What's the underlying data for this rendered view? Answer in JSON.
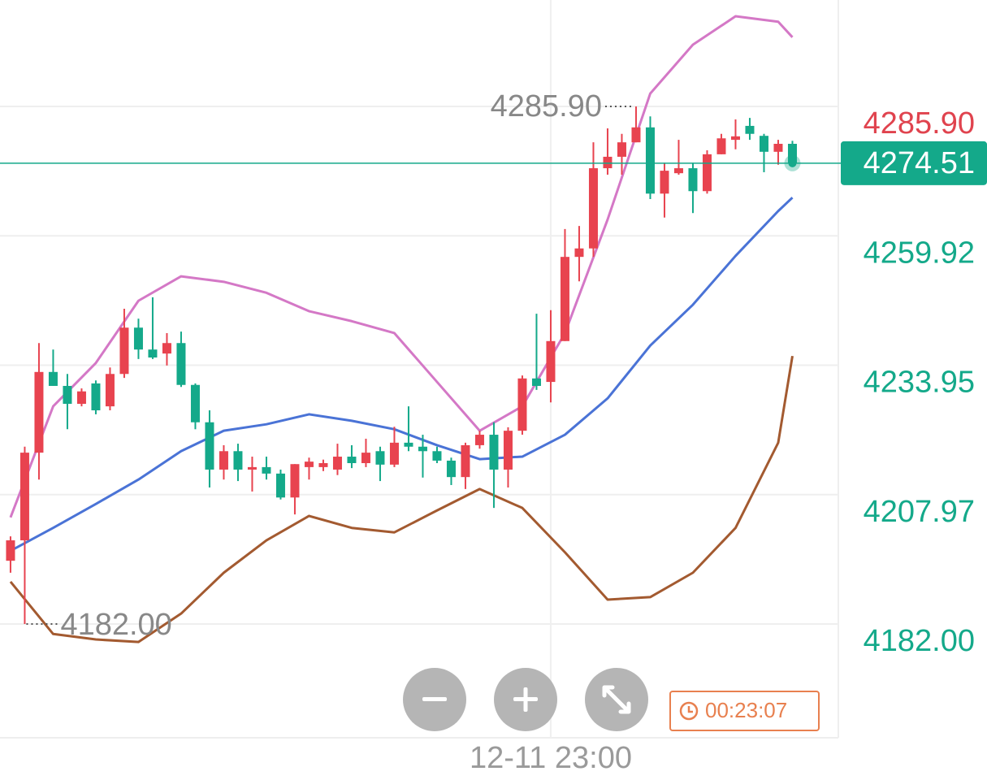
{
  "chart_data": {
    "type": "candlestick",
    "open": [
      4194.7,
      4198.8,
      4216.4,
      4232.6,
      4229.8,
      4226.2,
      4230.3,
      4225.7,
      4232.2,
      4241.5,
      4237.1,
      4236.3,
      4238.4,
      4230.0,
      4222.5,
      4213.0,
      4216.7,
      4213.0,
      4213.5,
      4212.2,
      4207.4,
      4213.5,
      4213.5,
      4213.0,
      4215.6,
      4214.3,
      4216.7,
      4214.0,
      4218.4,
      4217.6,
      4216.7,
      4214.8,
      4211.5,
      4217.9,
      4220.0,
      4213.0,
      4220.8,
      4231.3,
      4230.6,
      4238.8,
      4255.7,
      4257.4,
      4273.5,
      4275.8,
      4278.7,
      4281.7,
      4268.4,
      4272.5,
      4273.5,
      4268.9,
      4276.3,
      4279.2,
      4282.0,
      4280.0,
      4276.8,
      4278.4
    ],
    "high": [
      4199.6,
      4217.6,
      4238.4,
      4237.1,
      4232.2,
      4229.3,
      4230.9,
      4233.5,
      4245.3,
      4243.3,
      4247.6,
      4240.4,
      4240.7,
      4230.3,
      4224.9,
      4217.9,
      4218.2,
      4215.6,
      4215.6,
      4213.0,
      4214.1,
      4215.4,
      4215.0,
      4218.2,
      4217.9,
      4219.2,
      4217.6,
      4221.6,
      4225.7,
      4220.0,
      4217.6,
      4215.4,
      4218.4,
      4220.8,
      4222.5,
      4221.5,
      4231.9,
      4244.3,
      4245.0,
      4261.3,
      4261.9,
      4278.7,
      4281.5,
      4280.4,
      4285.9,
      4283.9,
      4274.6,
      4279.2,
      4274.6,
      4277.1,
      4280.4,
      4283.3,
      4283.6,
      4280.4,
      4279.2,
      4279.0
    ],
    "low": [
      4192.3,
      4182.0,
      4211.0,
      4229.8,
      4221.1,
      4225.7,
      4224.1,
      4224.9,
      4231.4,
      4235.2,
      4235.2,
      4233.9,
      4229.6,
      4221.1,
      4209.4,
      4211.0,
      4210.7,
      4208.6,
      4211.0,
      4207.0,
      4204.0,
      4211.0,
      4212.7,
      4211.9,
      4213.3,
      4213.5,
      4210.7,
      4213.5,
      4216.7,
      4211.4,
      4214.3,
      4209.9,
      4209.1,
      4217.2,
      4205.3,
      4209.4,
      4220.0,
      4229.0,
      4226.5,
      4238.8,
      4250.8,
      4255.7,
      4272.2,
      4272.2,
      4278.7,
      4267.3,
      4263.6,
      4272.2,
      4264.5,
      4268.4,
      4276.3,
      4277.3,
      4279.2,
      4272.7,
      4274.2,
      4273.8
    ],
    "close": [
      4198.8,
      4216.4,
      4232.6,
      4229.8,
      4226.2,
      4228.7,
      4224.9,
      4232.2,
      4241.5,
      4237.1,
      4235.5,
      4238.4,
      4230.0,
      4222.5,
      4213.0,
      4216.7,
      4213.0,
      4213.5,
      4212.2,
      4207.4,
      4214.1,
      4214.6,
      4214.3,
      4215.6,
      4214.3,
      4216.4,
      4214.0,
      4218.4,
      4217.6,
      4216.7,
      4214.8,
      4211.5,
      4217.9,
      4220.0,
      4213.0,
      4220.8,
      4231.3,
      4229.8,
      4238.8,
      4255.7,
      4257.4,
      4273.5,
      4275.8,
      4278.7,
      4281.7,
      4268.4,
      4273.0,
      4273.5,
      4268.9,
      4276.3,
      4279.5,
      4279.9,
      4280.4,
      4276.8,
      4278.4,
      4274.51
    ],
    "up_color": "#e8434f",
    "down_color": "#14a98a",
    "overlays": [
      {
        "color": "#d478c6",
        "x": [
          0,
          3,
          6,
          9,
          12,
          15,
          18,
          21,
          24,
          27,
          30,
          33,
          36,
          39,
          42,
          45,
          48,
          51,
          54,
          55
        ],
        "values": [
          4203.4,
          4225.7,
          4234.4,
          4246.9,
          4251.8,
          4250.7,
          4248.5,
          4244.8,
          4242.8,
          4240.4,
          4230.6,
          4220.8,
          4225.7,
          4240.4,
          4263.2,
          4288.5,
          4298.3,
          4304.0,
          4302.9,
          4299.8
        ]
      },
      {
        "color": "#4a73d6",
        "x": [
          0,
          3,
          6,
          9,
          12,
          15,
          18,
          21,
          24,
          27,
          30,
          33,
          36,
          39,
          42,
          45,
          48,
          51,
          54,
          55
        ],
        "values": [
          4196.7,
          4201.3,
          4206.1,
          4211.0,
          4216.7,
          4220.8,
          4222.1,
          4224.1,
          4222.8,
          4221.1,
          4217.9,
          4215.1,
          4215.6,
          4220.0,
          4227.3,
          4237.9,
          4246.1,
          4255.9,
          4264.9,
          4267.6
        ]
      },
      {
        "color": "#a35a30",
        "x": [
          0,
          3,
          6,
          9,
          12,
          15,
          18,
          21,
          24,
          27,
          30,
          33,
          36,
          39,
          42,
          45,
          48,
          51,
          54,
          55
        ],
        "values": [
          4190.5,
          4180.0,
          4178.9,
          4178.4,
          4184.1,
          4192.3,
          4198.8,
          4203.7,
          4201.3,
          4200.4,
          4204.8,
          4209.1,
          4205.3,
          4196.4,
          4186.9,
          4187.4,
          4192.3,
          4201.3,
          4218.4,
          4235.8
        ]
      }
    ],
    "xlim": [
      -0.74,
      58.23
    ],
    "xticks": [
      {
        "value": 38,
        "label": "12-11 23:00"
      }
    ],
    "ylim": [
      4159.17,
      4307.27
    ],
    "yticks": [
      {
        "value": 4182.0,
        "label": "4182.00"
      },
      {
        "value": 4207.97,
        "label": "4207.97"
      },
      {
        "value": 4233.95,
        "label": "4233.95"
      },
      {
        "value": 4259.92,
        "label": "4259.92"
      },
      {
        "value": 4285.9,
        "label": "4285.90"
      }
    ],
    "ytick_colors": [
      "#14a98a",
      "#14a98a",
      "#14a98a",
      "#14a98a",
      "#e0434e"
    ],
    "grid": true,
    "max_marker": {
      "value": 4285.9,
      "label": "4285.90"
    },
    "min_marker": {
      "value": 4182.0,
      "label": "4182.00"
    },
    "countdown": "00:23:07"
  }
}
